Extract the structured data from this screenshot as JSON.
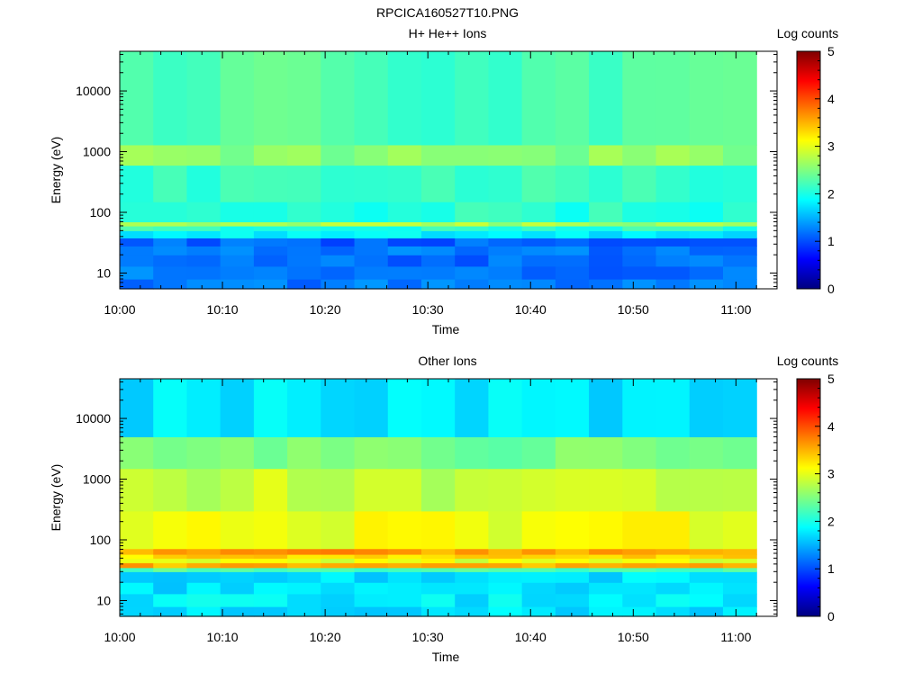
{
  "figure": {
    "title": "RPCICA160527T10.PNG"
  },
  "chart_data": [
    {
      "type": "heatmap",
      "title": "H+ He++ Ions",
      "xlabel": "Time",
      "ylabel": "Energy (eV)",
      "x_ticks": [
        "10:00",
        "10:10",
        "10:20",
        "10:30",
        "10:40",
        "10:50",
        "11:00"
      ],
      "x_range": [
        "10:00",
        "11:04"
      ],
      "y_scale": "log",
      "y_ticks": [
        10,
        100,
        1000,
        10000
      ],
      "y_tick_labels": [
        "10",
        "100",
        "1000",
        "10000"
      ],
      "y_range": [
        5.5,
        45000
      ],
      "colorbar": {
        "label": "Log counts",
        "min": 0,
        "max": 5,
        "ticks": [
          "0",
          "1",
          "2",
          "3",
          "4",
          "5"
        ]
      },
      "data_end": "11:02",
      "time_bins": 19,
      "energy_bands_log_counts": [
        {
          "e_lo": 5.5,
          "e_hi": 8,
          "v": 1.2
        },
        {
          "e_lo": 8,
          "e_hi": 13,
          "v": 1.2
        },
        {
          "e_lo": 13,
          "e_hi": 20,
          "v": 1.15
        },
        {
          "e_lo": 20,
          "e_hi": 28,
          "v": 1.2
        },
        {
          "e_lo": 28,
          "e_hi": 38,
          "v": 1.1
        },
        {
          "e_lo": 38,
          "e_hi": 50,
          "v": 1.8
        },
        {
          "e_lo": 50,
          "e_hi": 60,
          "v": 2.1
        },
        {
          "e_lo": 60,
          "e_hi": 70,
          "v": 2.7
        },
        {
          "e_lo": 70,
          "e_hi": 150,
          "v": 2.05
        },
        {
          "e_lo": 150,
          "e_hi": 600,
          "v": 2.15
        },
        {
          "e_lo": 600,
          "e_hi": 1300,
          "v": 2.55
        },
        {
          "e_lo": 1300,
          "e_hi": 45000,
          "v": 2.25
        }
      ]
    },
    {
      "type": "heatmap",
      "title": "Other Ions",
      "xlabel": "Time",
      "ylabel": "Energy (eV)",
      "x_ticks": [
        "10:00",
        "10:10",
        "10:20",
        "10:30",
        "10:40",
        "10:50",
        "11:00"
      ],
      "x_range": [
        "10:00",
        "11:04"
      ],
      "y_scale": "log",
      "y_ticks": [
        10,
        100,
        1000,
        10000
      ],
      "y_tick_labels": [
        "10",
        "100",
        "1000",
        "10000"
      ],
      "y_range": [
        5.5,
        45000
      ],
      "colorbar": {
        "label": "Log counts",
        "min": 0,
        "max": 5,
        "ticks": [
          "0",
          "1",
          "2",
          "3",
          "4",
          "5"
        ]
      },
      "data_end": "11:02",
      "time_bins": 19,
      "energy_bands_log_counts": [
        {
          "e_lo": 5.5,
          "e_hi": 8,
          "v": 1.75
        },
        {
          "e_lo": 8,
          "e_hi": 13,
          "v": 1.8
        },
        {
          "e_lo": 13,
          "e_hi": 20,
          "v": 1.7
        },
        {
          "e_lo": 20,
          "e_hi": 30,
          "v": 1.75
        },
        {
          "e_lo": 30,
          "e_hi": 35,
          "v": 2.3
        },
        {
          "e_lo": 35,
          "e_hi": 42,
          "v": 3.5
        },
        {
          "e_lo": 42,
          "e_hi": 50,
          "v": 3.0
        },
        {
          "e_lo": 50,
          "e_hi": 58,
          "v": 3.3
        },
        {
          "e_lo": 58,
          "e_hi": 72,
          "v": 3.6
        },
        {
          "e_lo": 72,
          "e_hi": 300,
          "v": 3.05
        },
        {
          "e_lo": 300,
          "e_hi": 1500,
          "v": 2.85
        },
        {
          "e_lo": 1500,
          "e_hi": 5000,
          "v": 2.45
        },
        {
          "e_lo": 5000,
          "e_hi": 45000,
          "v": 1.75
        }
      ]
    }
  ]
}
